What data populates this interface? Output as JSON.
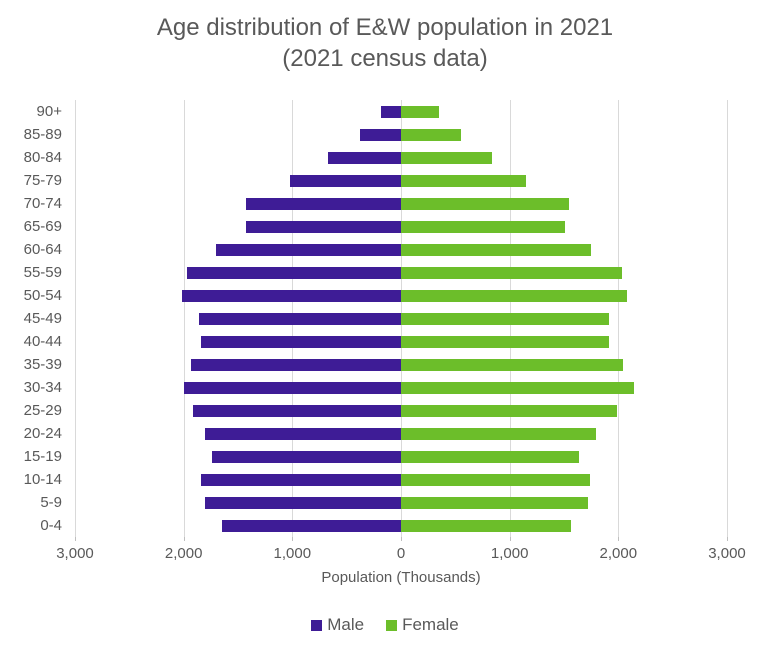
{
  "title": {
    "line1": "Age distribution of E&W population in 2021",
    "line2": "(2021 census data)"
  },
  "chart_data": {
    "type": "bar",
    "variant": "population-pyramid",
    "orientation": "horizontal",
    "title": "Age distribution of E&W population in 2021 (2021 census data)",
    "xlabel": "Population (Thousands)",
    "ylabel": "",
    "categories_top_to_bottom": [
      "90+",
      "85-89",
      "80-84",
      "75-79",
      "70-74",
      "65-69",
      "60-64",
      "55-59",
      "50-54",
      "45-49",
      "40-44",
      "35-39",
      "30-34",
      "25-29",
      "20-24",
      "15-19",
      "10-14",
      "5-9",
      "0-4"
    ],
    "series": [
      {
        "name": "Male",
        "color": "#3e1c96",
        "direction": "left",
        "values_top_to_bottom": [
          180,
          380,
          670,
          1020,
          1430,
          1430,
          1700,
          1970,
          2020,
          1860,
          1840,
          1930,
          2000,
          1910,
          1800,
          1740,
          1840,
          1800,
          1650
        ]
      },
      {
        "name": "Female",
        "color": "#6cbe2a",
        "direction": "right",
        "values_top_to_bottom": [
          350,
          550,
          840,
          1150,
          1550,
          1510,
          1750,
          2030,
          2080,
          1910,
          1910,
          2040,
          2140,
          1990,
          1790,
          1640,
          1740,
          1720,
          1560
        ]
      }
    ],
    "xlim": [
      -3000,
      3000
    ],
    "x_tick_values": [
      -3000,
      -2000,
      -1000,
      0,
      1000,
      2000,
      3000
    ],
    "x_tick_labels": [
      "3,000",
      "2,000",
      "1,000",
      "0",
      "1,000",
      "2,000",
      "3,000"
    ],
    "grid": true,
    "gridline_color": "#d9d9d9",
    "legend_position": "bottom",
    "text_color": "#595959"
  }
}
